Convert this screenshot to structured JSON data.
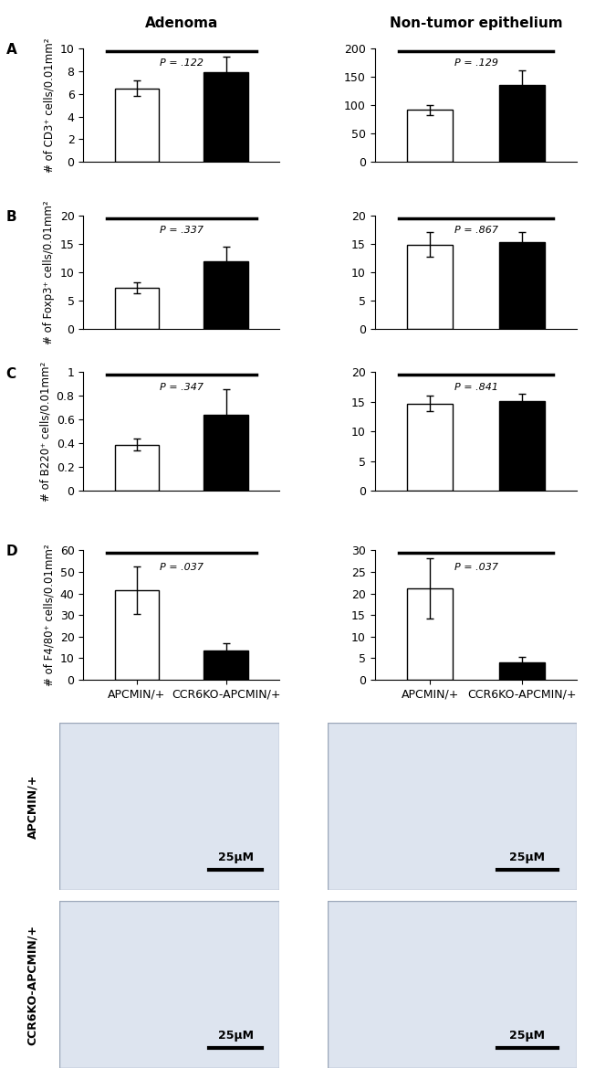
{
  "column_titles": [
    "Adenoma",
    "Non-tumor epithelium"
  ],
  "chart_data": [
    {
      "type": "bar",
      "panel_label": "A",
      "ylabel": "# of CD3⁺ cells/0.01mm²",
      "annotation": "P = .122",
      "categories": [
        null,
        null
      ],
      "values": [
        6.5,
        7.9
      ],
      "errors": [
        0.7,
        1.4
      ],
      "colors": [
        "#ffffff",
        "#000000"
      ],
      "ylim": [
        0,
        10
      ],
      "yticks": [
        0,
        2,
        4,
        6,
        8,
        10
      ],
      "tick_labels": "y"
    },
    {
      "type": "bar",
      "annotation": "P = .129",
      "categories": [
        null,
        null
      ],
      "values": [
        92,
        135
      ],
      "errors": [
        9,
        27
      ],
      "colors": [
        "#ffffff",
        "#000000"
      ],
      "ylim": [
        0,
        200
      ],
      "yticks": [
        0,
        50,
        100,
        150,
        200
      ],
      "tick_labels": "y"
    },
    {
      "type": "bar",
      "panel_label": "B",
      "ylabel": "# of Foxp3⁺ cells/0.01mm²",
      "annotation": "P = .337",
      "categories": [
        null,
        null
      ],
      "values": [
        7.3,
        11.9
      ],
      "errors": [
        1.0,
        2.7
      ],
      "colors": [
        "#ffffff",
        "#000000"
      ],
      "ylim": [
        0,
        20
      ],
      "yticks": [
        0,
        5,
        10,
        15,
        20
      ],
      "tick_labels": "y"
    },
    {
      "type": "bar",
      "annotation": "P = .867",
      "categories": [
        null,
        null
      ],
      "values": [
        14.9,
        15.3
      ],
      "errors": [
        2.2,
        1.9
      ],
      "colors": [
        "#ffffff",
        "#000000"
      ],
      "ylim": [
        0,
        20
      ],
      "yticks": [
        0,
        5,
        10,
        15,
        20
      ],
      "tick_labels": "y"
    },
    {
      "type": "bar",
      "panel_label": "C",
      "ylabel": "# of B220⁺ cells/0.01mm²",
      "annotation": "P = .347",
      "categories": [
        null,
        null
      ],
      "values": [
        0.39,
        0.64
      ],
      "errors": [
        0.05,
        0.22
      ],
      "colors": [
        "#ffffff",
        "#000000"
      ],
      "ylim": [
        0,
        1
      ],
      "yticks": [
        0,
        0.2,
        0.4,
        0.6,
        0.8,
        1
      ],
      "tick_labels": "y"
    },
    {
      "type": "bar",
      "annotation": "P = .841",
      "categories": [
        null,
        null
      ],
      "values": [
        14.7,
        15.1
      ],
      "errors": [
        1.3,
        1.2
      ],
      "colors": [
        "#ffffff",
        "#000000"
      ],
      "ylim": [
        0,
        20
      ],
      "yticks": [
        0,
        5,
        10,
        15,
        20
      ],
      "tick_labels": "y"
    },
    {
      "type": "bar",
      "panel_label": "D",
      "ylabel": "# of F4/80⁺ cells/0.01mm²",
      "annotation": "P = .037",
      "categories": [
        "APCMIN/+",
        "CCR6KO-APCMIN/+"
      ],
      "values": [
        41.7,
        13.6
      ],
      "errors": [
        11,
        3.5
      ],
      "colors": [
        "#ffffff",
        "#000000"
      ],
      "ylim": [
        0,
        60
      ],
      "yticks": [
        0,
        10,
        20,
        30,
        40,
        50,
        60
      ]
    },
    {
      "type": "bar",
      "annotation": "P = .037",
      "categories": [
        "APCMIN/+",
        "CCR6KO-APCMIN/+"
      ],
      "values": [
        21.2,
        4.0
      ],
      "errors": [
        7,
        1.3
      ],
      "colors": [
        "#ffffff",
        "#000000"
      ],
      "ylim": [
        0,
        30
      ],
      "yticks": [
        0,
        5,
        10,
        15,
        20,
        25,
        30
      ]
    }
  ],
  "images": {
    "row_labels": [
      "APCMIN/+",
      "CCR6KO-APCMIN/+"
    ],
    "scale_bar": "25μM"
  }
}
